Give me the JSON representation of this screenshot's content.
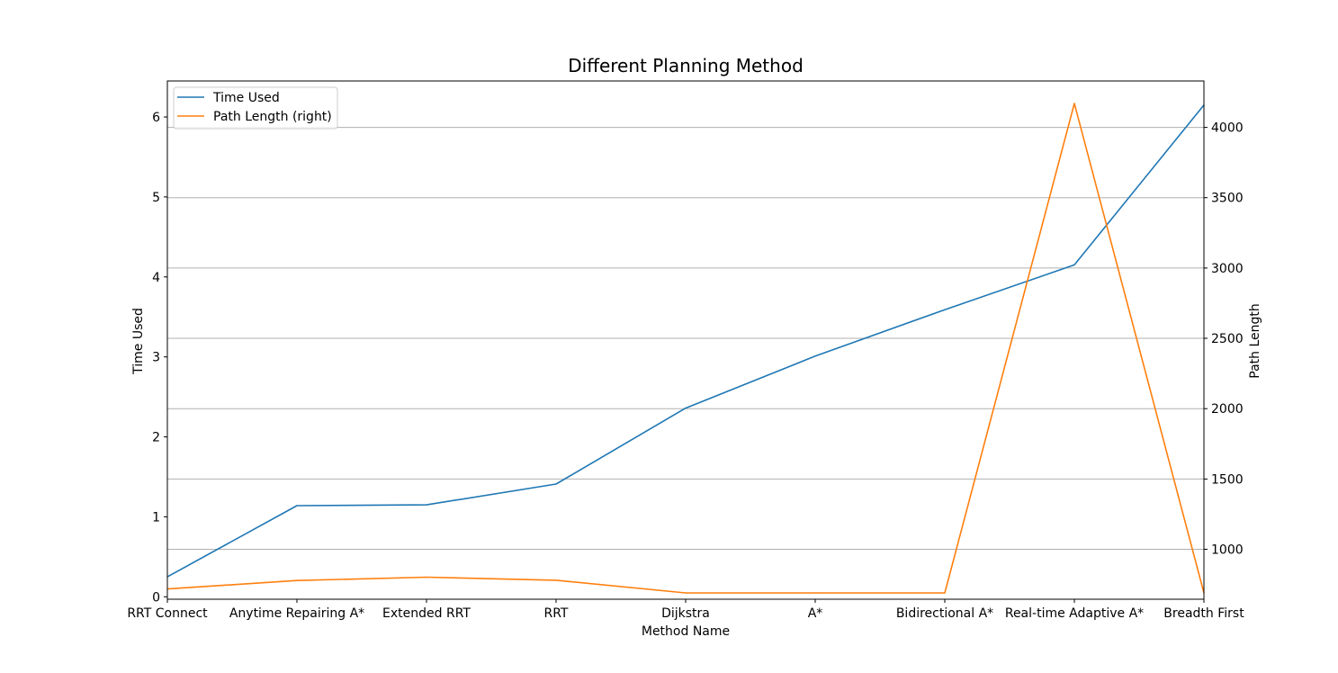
{
  "chart_data": {
    "type": "line",
    "title": "Different Planning Method",
    "xlabel": "Method Name",
    "ylabel": "Time Used",
    "ylabel_right": "Path Length",
    "categories": [
      "RRT Connect",
      "Anytime Repairing A*",
      "Extended RRT",
      "RRT",
      "Dijkstra",
      "A*",
      "Bidirectional A*",
      "Real-time Adaptive A*",
      "Breadth First"
    ],
    "series": [
      {
        "name": "Time Used",
        "axis": "left",
        "color": "#1f77b4",
        "values": [
          0.25,
          1.14,
          1.15,
          1.41,
          2.36,
          3.01,
          3.59,
          4.15,
          6.15
        ]
      },
      {
        "name": "Path Length (right)",
        "axis": "right",
        "color": "#ff7f0e",
        "values": [
          718,
          778,
          802,
          780,
          690,
          690,
          690,
          4170,
          690
        ]
      }
    ],
    "yticks_left": [
      0,
      1,
      2,
      3,
      4,
      5,
      6
    ],
    "yticks_right": [
      1000,
      1500,
      2000,
      2500,
      3000,
      3500,
      4000
    ],
    "ylim_left": [
      -0.03,
      6.45
    ],
    "ylim_right": [
      645,
      4330
    ],
    "grid": "horizontal lines at right-axis ticks",
    "legend_position": "top-left"
  }
}
